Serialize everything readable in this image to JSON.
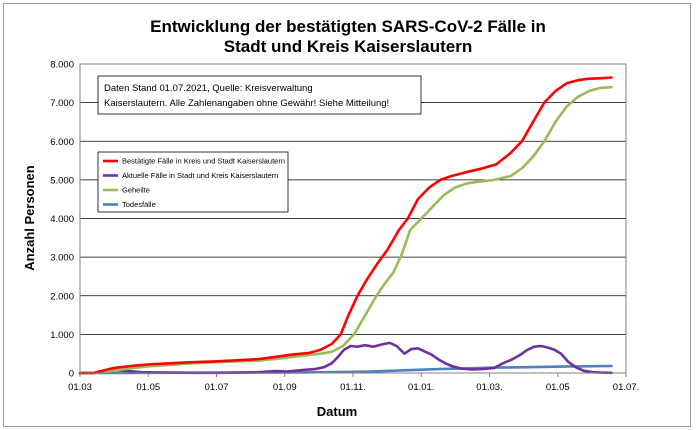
{
  "chart_data": {
    "type": "line",
    "title": [
      "Entwicklung der bestätigten SARS-CoV-2 Fälle in",
      "Stadt und Kreis Kaiserslautern"
    ],
    "xlabel": "Datum",
    "ylabel": "Anzahl Personen",
    "x_ticks": [
      "01.03",
      "01.05",
      "01.07",
      "01.09",
      "01.11.",
      "01.01.",
      "01.03.",
      "01.05",
      "01.07."
    ],
    "y_ticks": [
      "0",
      "1.000",
      "2.000",
      "3.000",
      "4.000",
      "5.000",
      "6.000",
      "7.000",
      "8.000"
    ],
    "ylim": [
      0,
      8000
    ],
    "x_range_days": [
      0,
      488
    ],
    "grid": "horizontal",
    "note": [
      "Daten Stand 01.07.2021, Quelle: Kreisverwaltung",
      "Kaiserslautern. Alle Zahlenangaben ohne Gewähr! Siehe Mitteilung!"
    ],
    "legend_position": "upper-left",
    "series": [
      {
        "name": "Bestätigte Fälle in Kreis und Stadt Kaiserslautern",
        "color": "#ff0000",
        "points": [
          [
            0,
            0
          ],
          [
            12,
            0
          ],
          [
            20,
            60
          ],
          [
            30,
            130
          ],
          [
            45,
            180
          ],
          [
            60,
            220
          ],
          [
            80,
            250
          ],
          [
            100,
            280
          ],
          [
            120,
            300
          ],
          [
            140,
            330
          ],
          [
            160,
            360
          ],
          [
            175,
            420
          ],
          [
            190,
            480
          ],
          [
            205,
            520
          ],
          [
            215,
            600
          ],
          [
            225,
            750
          ],
          [
            233,
            1000
          ],
          [
            240,
            1500
          ],
          [
            248,
            2000
          ],
          [
            256,
            2400
          ],
          [
            265,
            2800
          ],
          [
            275,
            3200
          ],
          [
            285,
            3700
          ],
          [
            293,
            4000
          ],
          [
            302,
            4500
          ],
          [
            312,
            4800
          ],
          [
            322,
            5000
          ],
          [
            332,
            5100
          ],
          [
            345,
            5200
          ],
          [
            360,
            5300
          ],
          [
            372,
            5400
          ],
          [
            385,
            5700
          ],
          [
            395,
            6000
          ],
          [
            405,
            6500
          ],
          [
            415,
            7000
          ],
          [
            425,
            7300
          ],
          [
            435,
            7500
          ],
          [
            445,
            7580
          ],
          [
            455,
            7620
          ],
          [
            465,
            7630
          ],
          [
            475,
            7650
          ]
        ]
      },
      {
        "name": "Aktuelle Fälle in Stadt und Kreis Kaiserslautern",
        "color": "#7030a0",
        "points": [
          [
            0,
            0
          ],
          [
            12,
            0
          ],
          [
            20,
            50
          ],
          [
            30,
            80
          ],
          [
            40,
            60
          ],
          [
            55,
            20
          ],
          [
            75,
            10
          ],
          [
            100,
            5
          ],
          [
            130,
            5
          ],
          [
            160,
            20
          ],
          [
            175,
            50
          ],
          [
            185,
            40
          ],
          [
            200,
            80
          ],
          [
            210,
            100
          ],
          [
            218,
            150
          ],
          [
            225,
            250
          ],
          [
            230,
            400
          ],
          [
            236,
            600
          ],
          [
            242,
            700
          ],
          [
            248,
            680
          ],
          [
            255,
            720
          ],
          [
            262,
            680
          ],
          [
            270,
            740
          ],
          [
            277,
            780
          ],
          [
            283,
            700
          ],
          [
            290,
            500
          ],
          [
            296,
            620
          ],
          [
            302,
            640
          ],
          [
            308,
            560
          ],
          [
            314,
            480
          ],
          [
            320,
            360
          ],
          [
            326,
            260
          ],
          [
            332,
            180
          ],
          [
            340,
            120
          ],
          [
            350,
            90
          ],
          [
            360,
            100
          ],
          [
            370,
            130
          ],
          [
            378,
            250
          ],
          [
            386,
            350
          ],
          [
            394,
            480
          ],
          [
            400,
            600
          ],
          [
            406,
            680
          ],
          [
            412,
            700
          ],
          [
            418,
            660
          ],
          [
            424,
            600
          ],
          [
            430,
            500
          ],
          [
            436,
            300
          ],
          [
            443,
            150
          ],
          [
            450,
            60
          ],
          [
            458,
            20
          ],
          [
            465,
            10
          ],
          [
            475,
            5
          ]
        ]
      },
      {
        "name": "Geheilte",
        "color": "#9bbb59",
        "points": [
          [
            0,
            0
          ],
          [
            15,
            0
          ],
          [
            25,
            40
          ],
          [
            40,
            100
          ],
          [
            60,
            170
          ],
          [
            80,
            210
          ],
          [
            100,
            250
          ],
          [
            120,
            280
          ],
          [
            140,
            300
          ],
          [
            160,
            320
          ],
          [
            180,
            380
          ],
          [
            200,
            450
          ],
          [
            215,
            500
          ],
          [
            225,
            550
          ],
          [
            235,
            700
          ],
          [
            245,
            1000
          ],
          [
            255,
            1500
          ],
          [
            265,
            2000
          ],
          [
            272,
            2300
          ],
          [
            280,
            2600
          ],
          [
            288,
            3100
          ],
          [
            295,
            3700
          ],
          [
            305,
            4000
          ],
          [
            315,
            4300
          ],
          [
            325,
            4600
          ],
          [
            335,
            4800
          ],
          [
            345,
            4900
          ],
          [
            355,
            4950
          ],
          [
            370,
            5000
          ],
          [
            385,
            5100
          ],
          [
            395,
            5300
          ],
          [
            405,
            5600
          ],
          [
            415,
            6000
          ],
          [
            425,
            6500
          ],
          [
            435,
            6900
          ],
          [
            445,
            7150
          ],
          [
            455,
            7300
          ],
          [
            465,
            7380
          ],
          [
            475,
            7400
          ]
        ]
      },
      {
        "name": "Todesfälle",
        "color": "#4f81bd",
        "points": [
          [
            0,
            0
          ],
          [
            30,
            0
          ],
          [
            60,
            5
          ],
          [
            100,
            8
          ],
          [
            150,
            10
          ],
          [
            200,
            15
          ],
          [
            230,
            25
          ],
          [
            260,
            40
          ],
          [
            290,
            70
          ],
          [
            320,
            100
          ],
          [
            345,
            120
          ],
          [
            370,
            140
          ],
          [
            400,
            150
          ],
          [
            430,
            165
          ],
          [
            460,
            175
          ],
          [
            475,
            180
          ]
        ]
      }
    ]
  }
}
